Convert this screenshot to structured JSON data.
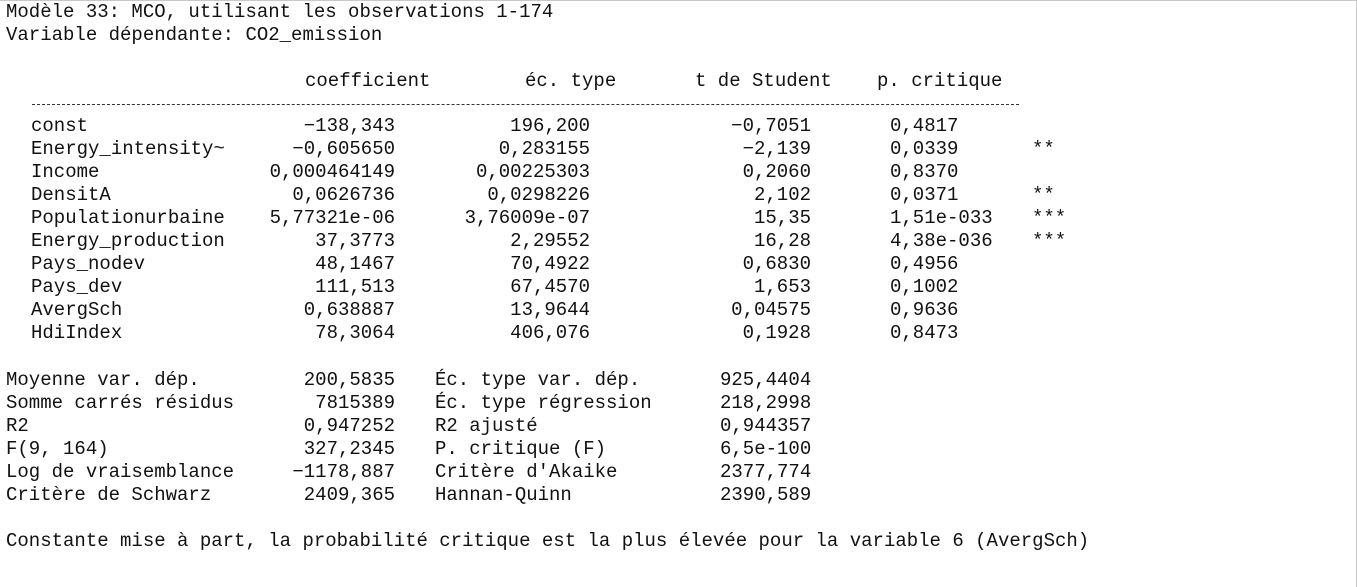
{
  "title": "Modèle 33: MCO, utilisant les observations 1-174",
  "dependent": "Variable dépendante: CO2_emission",
  "table": {
    "headers": [
      "coefficient",
      "éc. type",
      "t de Student",
      "p. critique"
    ],
    "rows": [
      {
        "name": "const",
        "coef": "−138,343",
        "se": "196,200",
        "t": "−0,7051",
        "p": "0,4817",
        "stars": ""
      },
      {
        "name": "Energy_intensity~",
        "coef": "−0,605650",
        "se": "0,283155",
        "t": "−2,139",
        "p": "0,0339",
        "stars": "**"
      },
      {
        "name": "Income",
        "coef": "0,000464149",
        "se": "0,00225303",
        "t": "0,2060",
        "p": "0,8370",
        "stars": ""
      },
      {
        "name": "DensitA",
        "coef": "0,0626736",
        "se": "0,0298226",
        "t": "2,102",
        "p": "0,0371",
        "stars": "**"
      },
      {
        "name": "Populationurbaine",
        "coef": "5,77321e-06",
        "se": "3,76009e-07",
        "t": "15,35",
        "p": "1,51e-033",
        "stars": "***"
      },
      {
        "name": "Energy_production",
        "coef": "37,3773",
        "se": "2,29552",
        "t": "16,28",
        "p": "4,38e-036",
        "stars": "***"
      },
      {
        "name": "Pays_nodev",
        "coef": "48,1467",
        "se": "70,4922",
        "t": "0,6830",
        "p": "0,4956",
        "stars": ""
      },
      {
        "name": "Pays_dev",
        "coef": "111,513",
        "se": "67,4570",
        "t": "1,653",
        "p": "0,1002",
        "stars": ""
      },
      {
        "name": "AvergSch",
        "coef": "0,638887",
        "se": "13,9644",
        "t": "0,04575",
        "p": "0,9636",
        "stars": ""
      },
      {
        "name": "HdiIndex",
        "coef": "78,3064",
        "se": "406,076",
        "t": "0,1928",
        "p": "0,8473",
        "stars": ""
      }
    ]
  },
  "stats": [
    {
      "l1": "Moyenne var. dép.",
      "v1": "200,5835",
      "l2": "Éc. type var. dép.",
      "v2": "925,4404"
    },
    {
      "l1": "Somme carrés résidus",
      "v1": "7815389",
      "l2": "Éc. type régression",
      "v2": "218,2998"
    },
    {
      "l1": "R2",
      "v1": "0,947252",
      "l2": "R2 ajusté",
      "v2": "0,944357"
    },
    {
      "l1": "F(9, 164)",
      "v1": "327,2345",
      "l2": "P. critique (F)",
      "v2": "6,5e-100"
    },
    {
      "l1": "Log de vraisemblance",
      "v1": "−1178,887",
      "l2": "Critère d'Akaike",
      "v2": "2377,774"
    },
    {
      "l1": "Critère de Schwarz",
      "v1": "2409,365",
      "l2": "Hannan-Quinn",
      "v2": "2390,589"
    }
  ],
  "footer": "Constante mise à part, la probabilité critique est la plus élevée pour la variable 6 (AvergSch)"
}
